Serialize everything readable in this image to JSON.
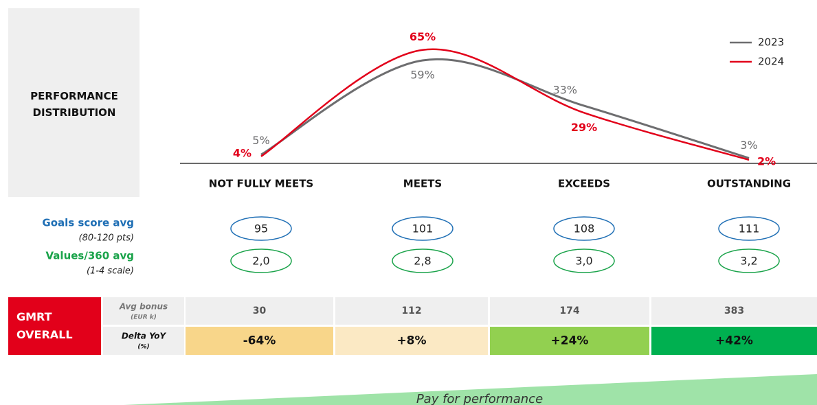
{
  "chart_data": {
    "type": "line",
    "title": "PERFORMANCE DISTRIBUTION",
    "categories": [
      "NOT FULLY MEETS",
      "MEETS",
      "EXCEEDS",
      "OUTSTANDING"
    ],
    "ylim": [
      0,
      70
    ],
    "series": [
      {
        "name": "2023",
        "color": "#6d6d6f",
        "values": [
          5,
          59,
          33,
          3
        ],
        "value_labels": [
          "5%",
          "59%",
          "33%",
          "3%"
        ]
      },
      {
        "name": "2024",
        "color": "#e2001a",
        "values": [
          4,
          65,
          29,
          2
        ],
        "value_labels": [
          "4%",
          "65%",
          "29%",
          "2%"
        ]
      }
    ]
  },
  "scores": {
    "goals": {
      "label": "Goals score avg",
      "note": "(80-120 pts)",
      "values": [
        "95",
        "101",
        "108",
        "111"
      ]
    },
    "values360": {
      "label": "Values/360 avg",
      "note": "(1-4 scale)",
      "values": [
        "2,0",
        "2,8",
        "3,0",
        "3,2"
      ]
    }
  },
  "table": {
    "title": "GMRT OVERALL",
    "rows": [
      {
        "label": "Avg bonus",
        "unit": "(EUR k)",
        "cells": [
          "30",
          "112",
          "174",
          "383"
        ]
      },
      {
        "label": "Delta YoY",
        "unit": "(%)",
        "cells": [
          "-64%",
          "+8%",
          "+24%",
          "+42%"
        ]
      }
    ]
  },
  "footer": "Pay for performance"
}
